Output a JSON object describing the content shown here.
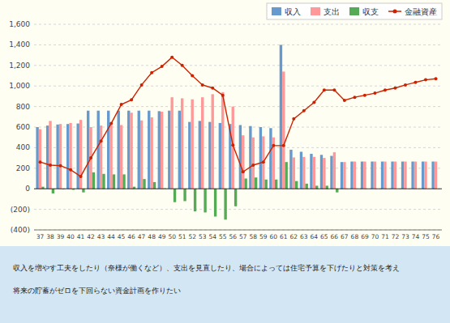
{
  "chart_data": {
    "type": "bar",
    "categories": [
      "37",
      "38",
      "39",
      "40",
      "41",
      "42",
      "43",
      "44",
      "45",
      "46",
      "47",
      "48",
      "49",
      "50",
      "51",
      "52",
      "53",
      "54",
      "55",
      "56",
      "57",
      "58",
      "59",
      "60",
      "61",
      "62",
      "63",
      "64",
      "65",
      "66",
      "67",
      "68",
      "69",
      "70",
      "71",
      "72",
      "73",
      "74",
      "75",
      "76"
    ],
    "series": [
      {
        "name": "収入",
        "type": "bar",
        "color": "#6699cc",
        "values": [
          600,
          615,
          625,
          630,
          635,
          760,
          760,
          760,
          760,
          760,
          760,
          760,
          755,
          760,
          760,
          650,
          660,
          650,
          640,
          630,
          620,
          610,
          600,
          590,
          1400,
          380,
          360,
          340,
          330,
          320,
          260,
          265,
          265,
          265,
          265,
          265,
          265,
          265,
          265,
          265
        ]
      },
      {
        "name": "支出",
        "type": "bar",
        "color": "#ff9999",
        "values": [
          580,
          660,
          630,
          640,
          670,
          600,
          615,
          620,
          620,
          740,
          665,
          695,
          750,
          890,
          880,
          870,
          890,
          920,
          940,
          800,
          520,
          500,
          510,
          500,
          1140,
          305,
          310,
          310,
          300,
          355,
          260,
          265,
          265,
          265,
          265,
          265,
          265,
          265,
          265,
          265
        ]
      },
      {
        "name": "収支",
        "type": "bar",
        "color": "#55aa55",
        "values": [
          20,
          -45,
          -5,
          -10,
          -35,
          160,
          145,
          140,
          140,
          20,
          95,
          65,
          5,
          -130,
          -120,
          -220,
          -230,
          -270,
          -300,
          -170,
          100,
          110,
          90,
          90,
          260,
          75,
          50,
          30,
          30,
          -35,
          0,
          0,
          0,
          0,
          0,
          0,
          0,
          0,
          0,
          0
        ]
      },
      {
        "name": "金融資産",
        "type": "line",
        "color": "#cc2200",
        "marker": "circle",
        "values": [
          260,
          230,
          225,
          185,
          120,
          300,
          465,
          635,
          820,
          865,
          1010,
          1130,
          1190,
          1280,
          1200,
          1100,
          1010,
          980,
          910,
          425,
          165,
          230,
          260,
          420,
          420,
          680,
          760,
          840,
          960,
          960,
          860,
          890,
          910,
          930,
          960,
          980,
          1010,
          1035,
          1060,
          1070
        ]
      }
    ],
    "ylim": [
      -400,
      1600
    ],
    "yticks": [
      {
        "value": -400,
        "label": "(400)"
      },
      {
        "value": -200,
        "label": "(200)"
      },
      0,
      200,
      400,
      600,
      800,
      {
        "value": 1000,
        "label": "1,000"
      },
      {
        "value": 1200,
        "label": "1,200"
      },
      {
        "value": 1400,
        "label": "1,400"
      },
      {
        "value": 1600,
        "label": "1,600"
      }
    ],
    "grid": true,
    "legend": "upper right",
    "annotations": [
      "収入を増やす工夫をしたり（奈様が働くなど）、支出を見直したり、場合によっては住宅予算を下げたりと対策を考え",
      "将来の貯蓄がゼロを下回らない資金計画を作りたい"
    ]
  }
}
